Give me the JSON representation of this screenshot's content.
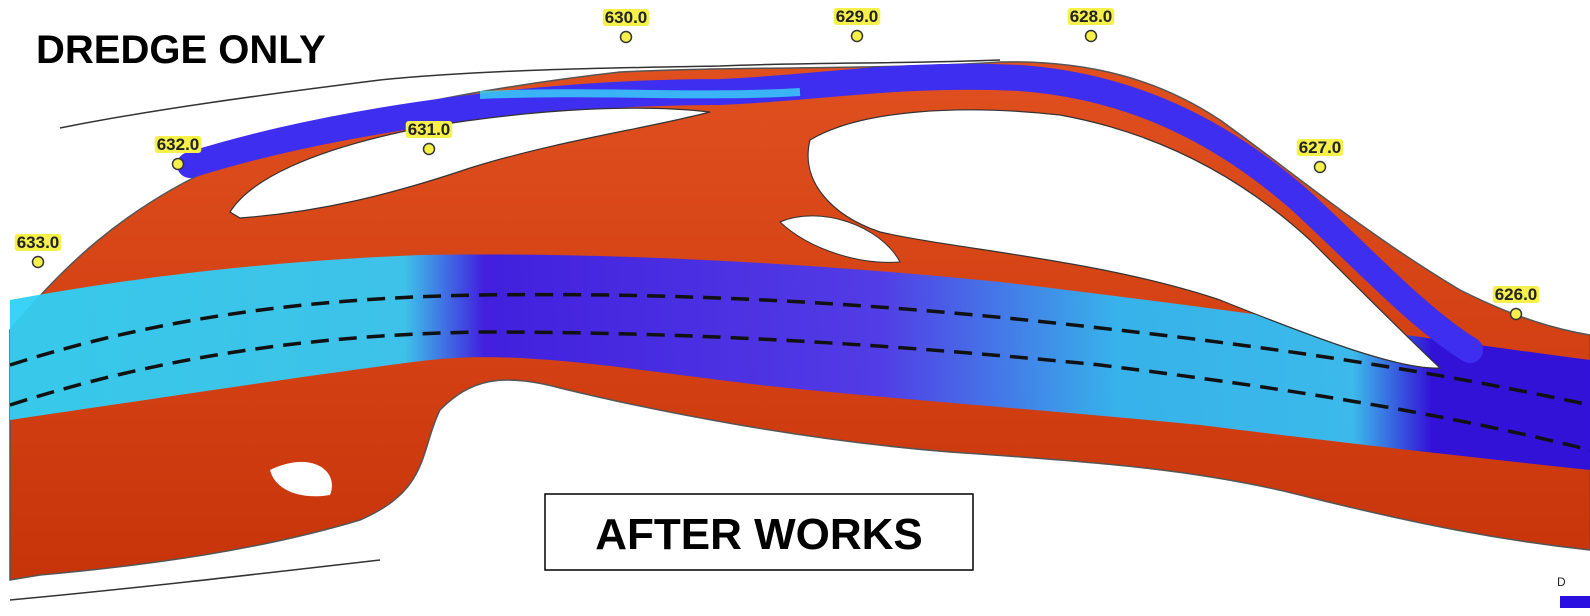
{
  "title": "DREDGE ONLY",
  "label_box": "AFTER WORKS",
  "mile_markers": [
    "633.0",
    "632.0",
    "631.0",
    "630.0",
    "629.0",
    "628.0",
    "627.0",
    "626.0"
  ],
  "legend_fragment": "D"
}
